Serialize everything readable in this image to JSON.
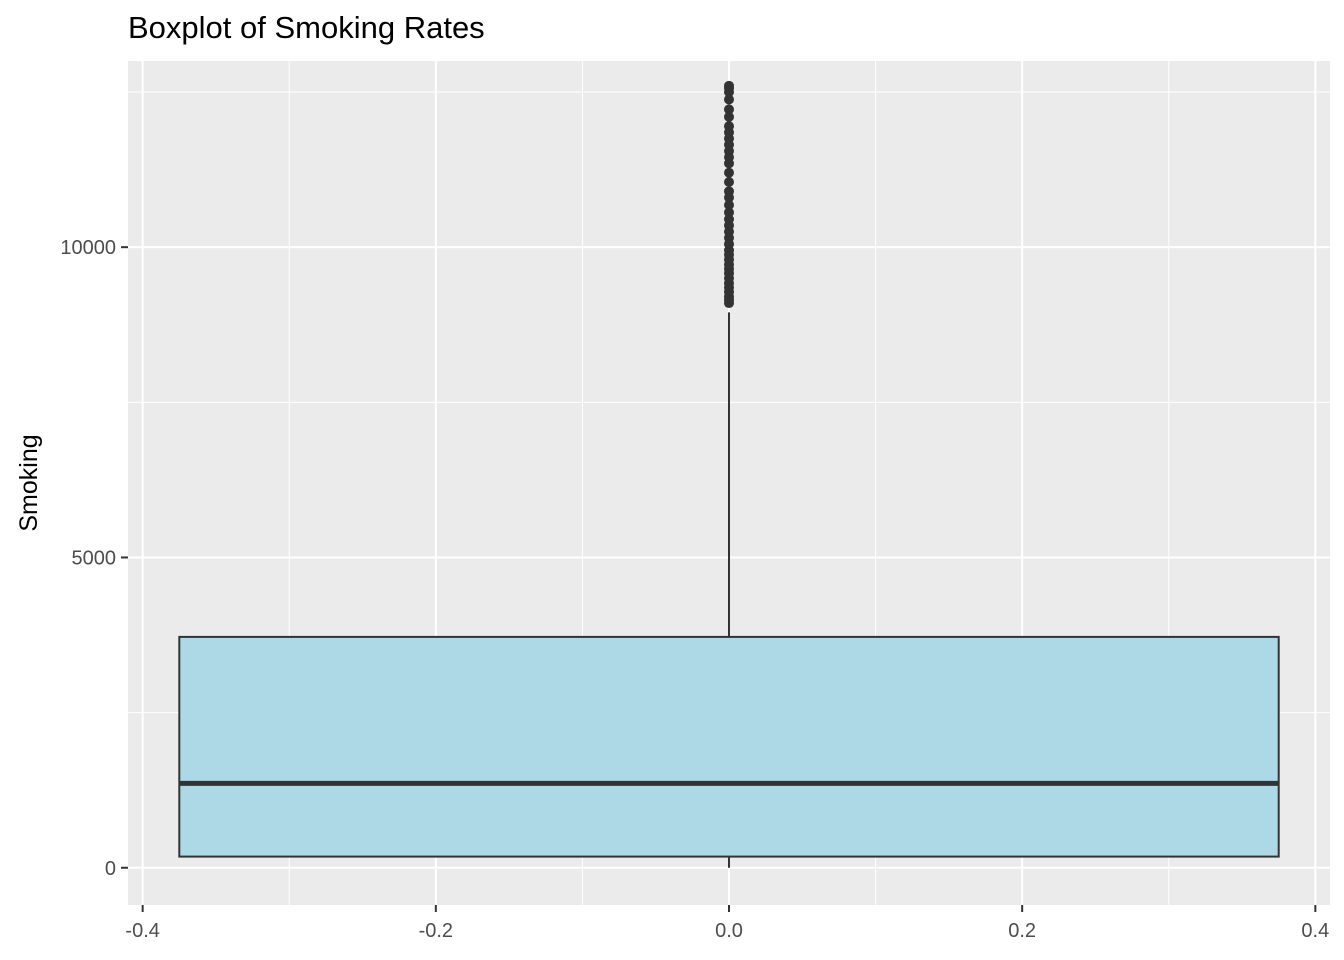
{
  "chart_data": {
    "type": "box",
    "title": "Boxplot of Smoking Rates",
    "xlabel": "",
    "ylabel": "Smoking",
    "x_ticks": [
      -0.4,
      -0.2,
      0.0,
      0.2,
      0.4
    ],
    "x_tick_labels": [
      "-0.4",
      "-0.2",
      "0.0",
      "0.2",
      "0.4"
    ],
    "y_ticks": [
      0,
      5000,
      10000
    ],
    "y_tick_labels": [
      "0",
      "5000",
      "10000"
    ],
    "xlim": [
      -0.41,
      0.41
    ],
    "ylim": [
      -600,
      13000
    ],
    "grid": true,
    "panel_background": "#ebebeb",
    "grid_color": "#ffffff",
    "box": {
      "x_center": 0.0,
      "x_min": -0.375,
      "x_max": 0.375,
      "whisker_low": 0,
      "q1": 180,
      "median": 1360,
      "q3": 3720,
      "whisker_high": 8950,
      "fill": "#add8e6",
      "outline": "#333333"
    },
    "outliers": [
      9100,
      9150,
      9200,
      9280,
      9350,
      9420,
      9500,
      9580,
      9650,
      9720,
      9800,
      9880,
      9950,
      10050,
      10150,
      10250,
      10350,
      10450,
      10560,
      10680,
      10800,
      10900,
      11050,
      11200,
      11350,
      11450,
      11550,
      11650,
      11750,
      11850,
      11950,
      12100,
      12220,
      12380,
      12500,
      12560,
      12600
    ]
  }
}
